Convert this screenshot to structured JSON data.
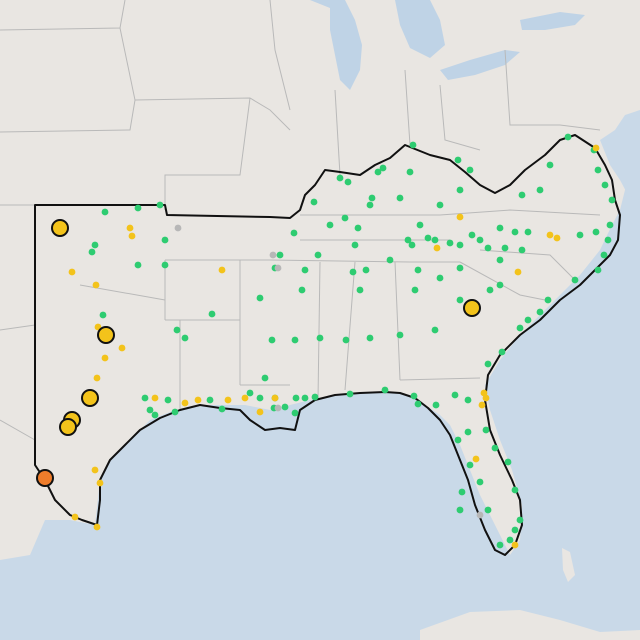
{
  "map": {
    "colors": {
      "land": "#e9e6e2",
      "water": "#c9d9e8",
      "lake": "#bfd3e6",
      "state_border": "#b9b9b9",
      "region_outline": "#111111",
      "status_green": "#2ecc71",
      "status_yellow": "#f3c31b",
      "status_orange": "#ef7d2b",
      "status_gray": "#b7b7b7"
    },
    "marker_colors": {
      "green": "#2ecc71",
      "yellow": "#f3c31b",
      "orange": "#ef7d2b",
      "gray": "#b7b7b7"
    }
  }
}
